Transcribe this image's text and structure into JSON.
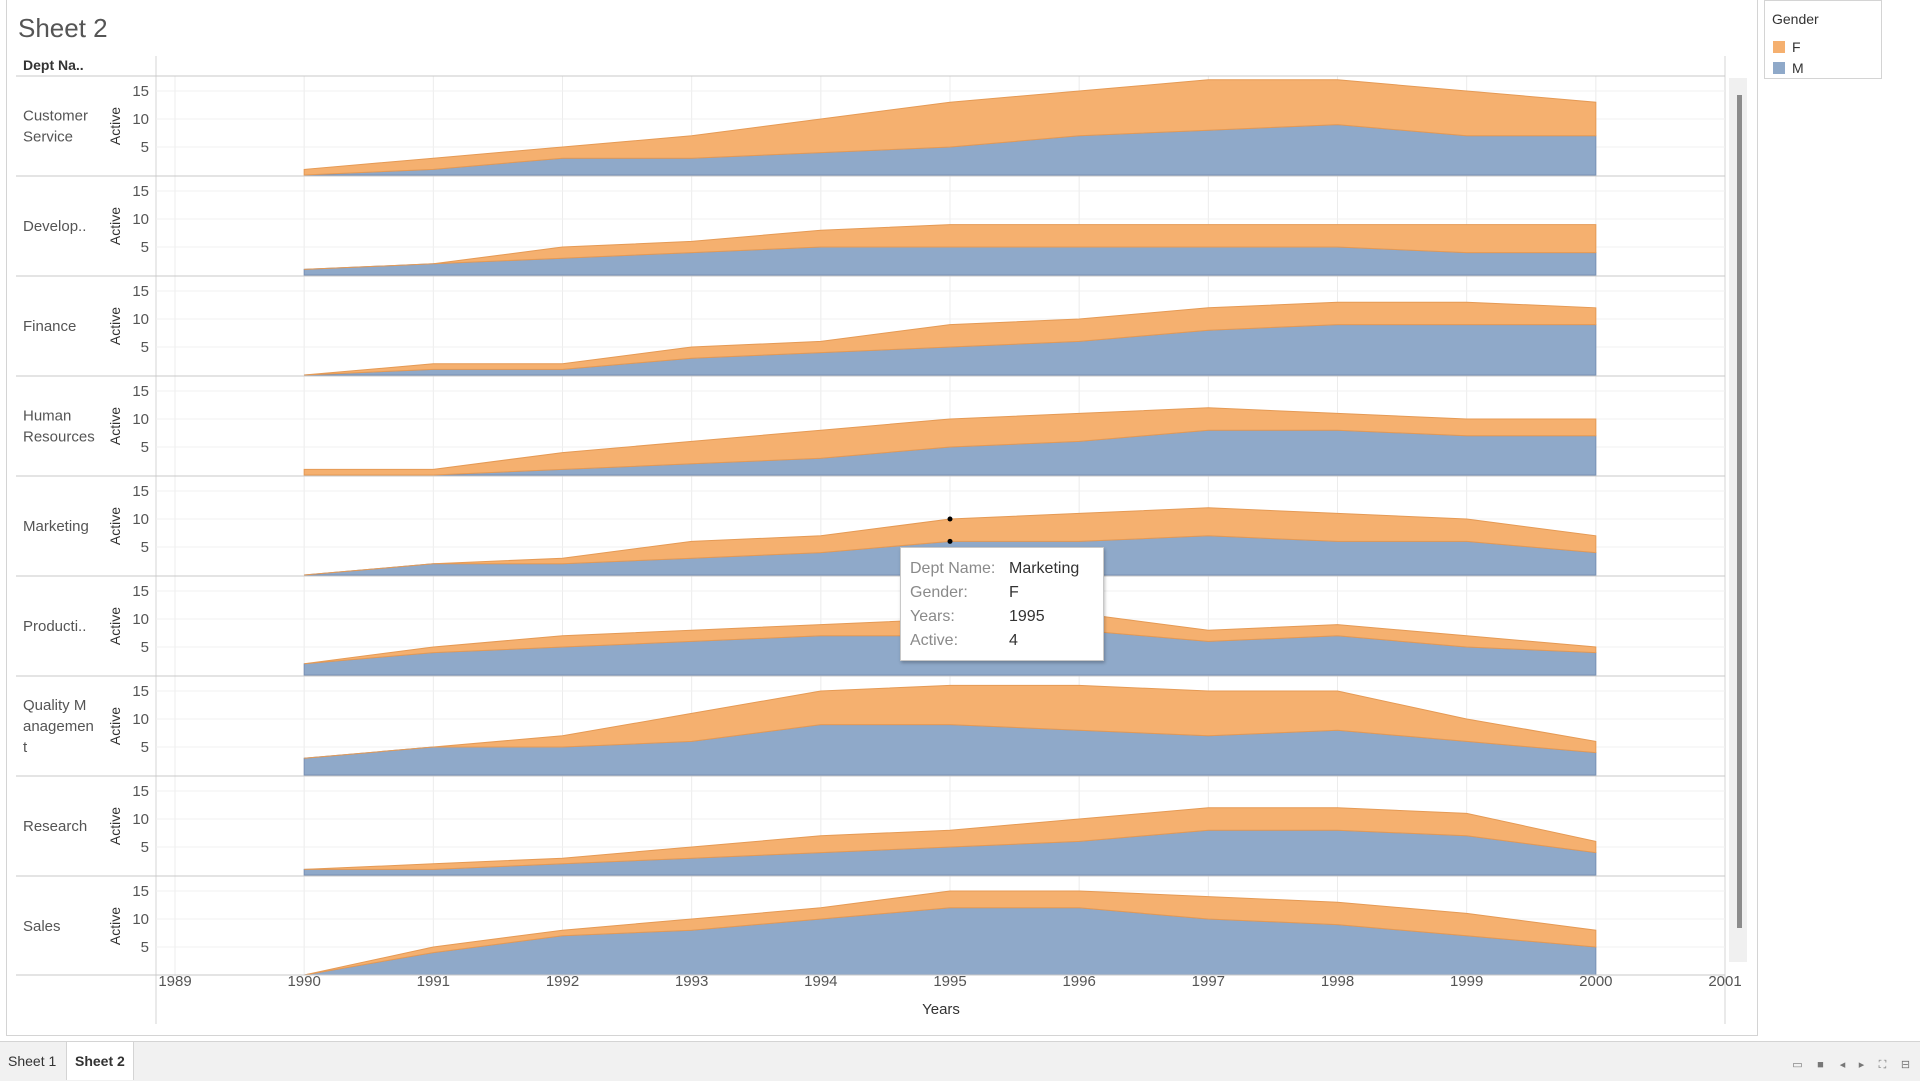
{
  "sheet_title": "Sheet 2",
  "dept_header": "Dept Na..",
  "legend": {
    "title": "Gender",
    "items": [
      {
        "label": "F",
        "color": "#f5b06f"
      },
      {
        "label": "M",
        "color": "#8fa9c9"
      }
    ]
  },
  "tooltip": {
    "rows": [
      {
        "key": "Dept Name:",
        "value": "Marketing"
      },
      {
        "key": "Gender:",
        "value": "F"
      },
      {
        "key": "Years:",
        "value": "1995"
      },
      {
        "key": "Active:",
        "value": "4"
      }
    ]
  },
  "tabs": [
    {
      "label": "Sheet 1"
    },
    {
      "label": "Sheet 2"
    }
  ],
  "chart_data": {
    "type": "area",
    "stacked": true,
    "xlabel": "Years",
    "ylabel": "Active",
    "x_ticks": [
      "1989",
      "1990",
      "1991",
      "1992",
      "1993",
      "1994",
      "1995",
      "1996",
      "1997",
      "1998",
      "1999",
      "2000",
      "2001"
    ],
    "y_ticks": [
      "5",
      "10",
      "15"
    ],
    "x_range": [
      1989,
      2001
    ],
    "y_range": [
      0,
      18
    ],
    "x": [
      1990,
      1991,
      1992,
      1993,
      1994,
      1995,
      1996,
      1997,
      1998,
      1999,
      2000
    ],
    "colors": {
      "F": "#f5b06f",
      "M": "#8fa9c9"
    },
    "panels": [
      {
        "dept": "Customer Service",
        "label_lines": [
          "Customer",
          "Service"
        ],
        "M": [
          0,
          1,
          3,
          3,
          4,
          5,
          7,
          8,
          9,
          7,
          7
        ],
        "F": [
          1,
          2,
          2,
          4,
          6,
          8,
          8,
          9,
          8,
          8,
          6
        ]
      },
      {
        "dept": "Development",
        "label_lines": [
          "Develop.."
        ],
        "M": [
          1,
          2,
          3,
          4,
          5,
          5,
          5,
          5,
          5,
          4,
          4
        ],
        "F": [
          0,
          0,
          2,
          2,
          3,
          4,
          4,
          4,
          4,
          5,
          5
        ]
      },
      {
        "dept": "Finance",
        "label_lines": [
          "Finance"
        ],
        "M": [
          0,
          1,
          1,
          3,
          4,
          5,
          6,
          8,
          9,
          9,
          9
        ],
        "F": [
          0,
          1,
          1,
          2,
          2,
          4,
          4,
          4,
          4,
          4,
          3
        ]
      },
      {
        "dept": "Human Resources",
        "label_lines": [
          "Human",
          "Resources"
        ],
        "M": [
          0,
          0,
          1,
          2,
          3,
          5,
          6,
          8,
          8,
          7,
          7
        ],
        "F": [
          1,
          1,
          3,
          4,
          5,
          5,
          5,
          4,
          3,
          3,
          3
        ]
      },
      {
        "dept": "Marketing",
        "label_lines": [
          "Marketing"
        ],
        "M": [
          0,
          2,
          2,
          3,
          4,
          6,
          6,
          7,
          6,
          6,
          4
        ],
        "F": [
          0,
          0,
          1,
          3,
          3,
          4,
          5,
          5,
          5,
          4,
          3
        ]
      },
      {
        "dept": "Production",
        "label_lines": [
          "Producti.."
        ],
        "M": [
          2,
          4,
          5,
          6,
          7,
          7,
          8,
          6,
          7,
          5,
          4
        ],
        "F": [
          0,
          1,
          2,
          2,
          2,
          3,
          3,
          2,
          2,
          2,
          1
        ]
      },
      {
        "dept": "Quality Management",
        "label_lines": [
          "Quality M",
          "anagemen",
          "t"
        ],
        "M": [
          3,
          5,
          5,
          6,
          9,
          9,
          8,
          7,
          8,
          6,
          4
        ],
        "F": [
          0,
          0,
          2,
          5,
          6,
          7,
          8,
          8,
          7,
          4,
          2
        ]
      },
      {
        "dept": "Research",
        "label_lines": [
          "Research"
        ],
        "M": [
          1,
          1,
          2,
          3,
          4,
          5,
          6,
          8,
          8,
          7,
          4
        ],
        "F": [
          0,
          1,
          1,
          2,
          3,
          3,
          4,
          4,
          4,
          4,
          2
        ]
      },
      {
        "dept": "Sales",
        "label_lines": [
          "Sales"
        ],
        "M": [
          0,
          4,
          7,
          8,
          10,
          12,
          12,
          10,
          9,
          7,
          5
        ],
        "F": [
          0,
          1,
          1,
          2,
          2,
          3,
          3,
          4,
          4,
          4,
          3
        ]
      }
    ]
  }
}
